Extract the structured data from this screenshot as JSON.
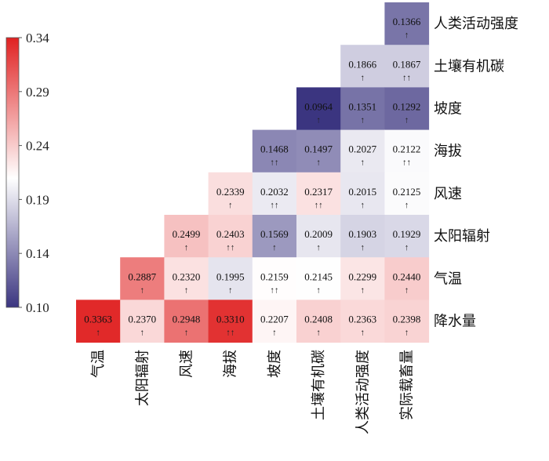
{
  "chart_data": {
    "type": "heatmap",
    "row_labels": [
      "人类活动强度",
      "土壤有机碳",
      "坡度",
      "海拔",
      "风速",
      "太阳辐射",
      "气温",
      "降水量"
    ],
    "col_labels": [
      "气温",
      "太阳辐射",
      "风速",
      "海拔",
      "坡度",
      "土壤有机碳",
      "人类活动强度",
      "实际载畜量"
    ],
    "cells": [
      [
        null,
        null,
        null,
        null,
        null,
        null,
        null,
        {
          "v": "0.1366",
          "a": "↑"
        }
      ],
      [
        null,
        null,
        null,
        null,
        null,
        null,
        {
          "v": "0.1866",
          "a": "↑"
        },
        {
          "v": "0.1867",
          "a": "↑↑"
        }
      ],
      [
        null,
        null,
        null,
        null,
        null,
        {
          "v": "0.0964",
          "a": "↑"
        },
        {
          "v": "0.1351",
          "a": "↑"
        },
        {
          "v": "0.1292",
          "a": "↑"
        }
      ],
      [
        null,
        null,
        null,
        null,
        {
          "v": "0.1468",
          "a": "↑↑"
        },
        {
          "v": "0.1497",
          "a": "↑"
        },
        {
          "v": "0.2027",
          "a": "↑"
        },
        {
          "v": "0.2122",
          "a": "↑↑"
        }
      ],
      [
        null,
        null,
        null,
        {
          "v": "0.2339",
          "a": "↑"
        },
        {
          "v": "0.2032",
          "a": "↑↑"
        },
        {
          "v": "0.2317",
          "a": "↑↑"
        },
        {
          "v": "0.2015",
          "a": "↑"
        },
        {
          "v": "0.2125",
          "a": "↑"
        }
      ],
      [
        null,
        null,
        {
          "v": "0.2499",
          "a": "↑"
        },
        {
          "v": "0.2403",
          "a": "↑↑"
        },
        {
          "v": "0.1569",
          "a": "↑"
        },
        {
          "v": "0.2009",
          "a": "↑"
        },
        {
          "v": "0.1903",
          "a": "↑"
        },
        {
          "v": "0.1929",
          "a": "↑"
        }
      ],
      [
        null,
        {
          "v": "0.2887",
          "a": "↑"
        },
        {
          "v": "0.2320",
          "a": "↑"
        },
        {
          "v": "0.1995",
          "a": "↑"
        },
        {
          "v": "0.2159",
          "a": "↑↑"
        },
        {
          "v": "0.2145",
          "a": "↑"
        },
        {
          "v": "0.2299",
          "a": "↑"
        },
        {
          "v": "0.2440",
          "a": "↑"
        }
      ],
      [
        {
          "v": "0.3363",
          "a": "↑"
        },
        {
          "v": "0.2370",
          "a": "↑"
        },
        {
          "v": "0.2948",
          "a": "↑"
        },
        {
          "v": "0.3310",
          "a": "↑↑"
        },
        {
          "v": "0.2207",
          "a": "↑"
        },
        {
          "v": "0.2408",
          "a": "↑"
        },
        {
          "v": "0.2363",
          "a": "↑"
        },
        {
          "v": "0.2398",
          "a": "↑"
        }
      ]
    ],
    "colorbar": {
      "range": [
        0.1,
        0.34
      ],
      "ticks": [
        "0.34",
        "0.29",
        "0.24",
        "0.19",
        "0.14",
        "0.10"
      ],
      "colors": {
        "low": "#3b3580",
        "mid": "#ffffff",
        "high": "#e02222"
      },
      "mid_value": 0.215,
      "placement": "left"
    }
  }
}
